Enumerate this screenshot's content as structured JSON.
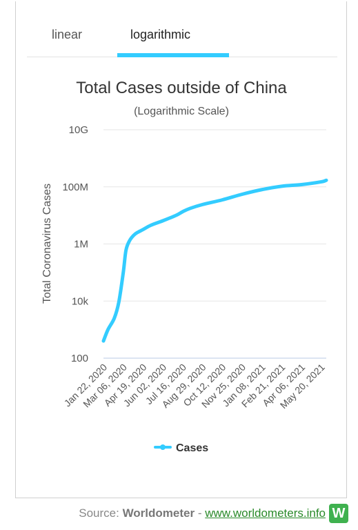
{
  "tabs": [
    {
      "label": "linear",
      "active": false
    },
    {
      "label": "logarithmic",
      "active": true
    }
  ],
  "accent_color": "#33ccff",
  "chart_data": {
    "type": "line",
    "title": "Total Cases outside of China",
    "subtitle": "(Logarithmic Scale)",
    "xlabel": "",
    "ylabel": "Total Coronavirus Cases",
    "yscale": "log",
    "ylim": [
      100,
      10000000000
    ],
    "y_ticks": [
      "100",
      "10k",
      "1M",
      "100M",
      "10G"
    ],
    "categories": [
      "Jan 22, 2020",
      "Mar 06, 2020",
      "Apr 19, 2020",
      "Jun 02, 2020",
      "Jul 16, 2020",
      "Aug 29, 2020",
      "Oct 12, 2020",
      "Nov 25, 2020",
      "Jan 08, 2021",
      "Feb 21, 2021",
      "Apr 06, 2021",
      "May 20, 2021"
    ],
    "series": [
      {
        "name": "Cases",
        "color": "#33ccff",
        "x": [
          "Jan 22, 2020",
          "Feb 01, 2020",
          "Feb 15, 2020",
          "Feb 25, 2020",
          "Mar 06, 2020",
          "Mar 12, 2020",
          "Mar 20, 2020",
          "Mar 29, 2020",
          "Apr 06, 2020",
          "Apr 19, 2020",
          "May 06, 2020",
          "Jun 02, 2020",
          "Jul 01, 2020",
          "Jul 16, 2020",
          "Aug 01, 2020",
          "Aug 29, 2020",
          "Oct 12, 2020",
          "Nov 25, 2020",
          "Jan 08, 2021",
          "Feb 21, 2021",
          "Apr 06, 2021",
          "May 20, 2021",
          "May 31, 2021"
        ],
        "values": [
          400,
          1000,
          2500,
          9000,
          100000,
          600000,
          1300000,
          2000000,
          2500000,
          3200000,
          4500000,
          6500000,
          10000000,
          13500000,
          17500000,
          24000000,
          35000000,
          55000000,
          80000000,
          105000000,
          120000000,
          150000000,
          170000000
        ]
      }
    ],
    "legend": "bottom",
    "grid": true
  },
  "footer": {
    "source_prefix": "Source: ",
    "source_name": "Worldometer",
    "separator": " - ",
    "link_text": "www.worldometers.info",
    "logo_letter": "W"
  }
}
